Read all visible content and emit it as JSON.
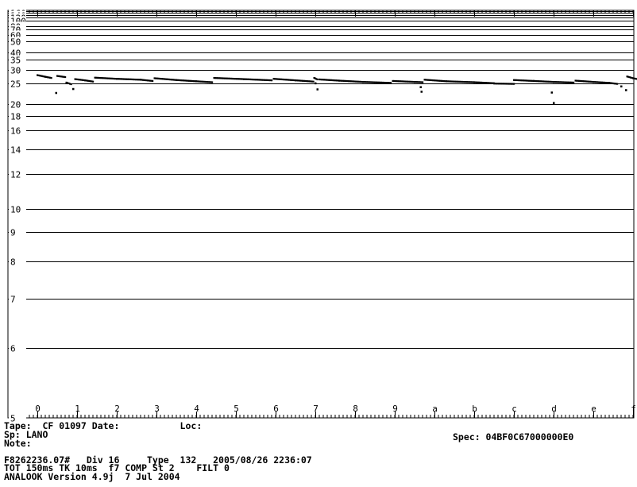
{
  "chart_data": {
    "type": "scatter",
    "y_scale": "reciprocal",
    "ylim": [
      5,
      200
    ],
    "xlim": [
      0,
      15
    ],
    "grid": true,
    "y_ticks": [
      {
        "value": 200,
        "label": "200"
      },
      {
        "value": 180,
        "label": "180"
      },
      {
        "value": 160,
        "label": "160"
      },
      {
        "value": 140,
        "label": "140"
      },
      {
        "value": 120,
        "label": "120"
      },
      {
        "value": 100,
        "label": "100"
      },
      {
        "value": 80,
        "label": "80"
      },
      {
        "value": 70,
        "label": "70"
      },
      {
        "value": 60,
        "label": "60"
      },
      {
        "value": 50,
        "label": "50"
      },
      {
        "value": 40,
        "label": "40"
      },
      {
        "value": 35,
        "label": "35"
      },
      {
        "value": 30,
        "label": "30"
      },
      {
        "value": 25,
        "label": "25"
      },
      {
        "value": 20,
        "label": "20"
      },
      {
        "value": 18,
        "label": "18"
      },
      {
        "value": 16,
        "label": "16"
      },
      {
        "value": 14,
        "label": "14"
      },
      {
        "value": 12,
        "label": "12"
      },
      {
        "value": 10,
        "label": "10"
      },
      {
        "value": 9,
        "label": "9"
      },
      {
        "value": 8,
        "label": "8"
      },
      {
        "value": 7,
        "label": "7"
      },
      {
        "value": 6,
        "label": "6"
      },
      {
        "value": 5,
        "label": "5"
      }
    ],
    "x_ticks": [
      {
        "value": 0,
        "label": "0"
      },
      {
        "value": 1,
        "label": "1"
      },
      {
        "value": 2,
        "label": "2"
      },
      {
        "value": 3,
        "label": "3"
      },
      {
        "value": 4,
        "label": "4"
      },
      {
        "value": 5,
        "label": "5"
      },
      {
        "value": 6,
        "label": "6"
      },
      {
        "value": 7,
        "label": "7"
      },
      {
        "value": 8,
        "label": "8"
      },
      {
        "value": 9,
        "label": "9"
      },
      {
        "value": 10,
        "label": "a"
      },
      {
        "value": 11,
        "label": "b"
      },
      {
        "value": 12,
        "label": "c"
      },
      {
        "value": 13,
        "label": "d"
      },
      {
        "value": 14,
        "label": "e"
      },
      {
        "value": 15,
        "label": "f"
      }
    ],
    "segments": [
      {
        "points": [
          [
            0.0,
            27.8
          ],
          [
            0.2,
            27.2
          ],
          [
            0.35,
            26.8
          ]
        ]
      },
      {
        "points": [
          [
            0.47,
            22.5
          ]
        ]
      },
      {
        "points": [
          [
            0.5,
            27.5
          ],
          [
            0.7,
            27.1
          ]
        ]
      },
      {
        "points": [
          [
            0.73,
            25.3
          ],
          [
            0.85,
            24.8
          ]
        ]
      },
      {
        "points": [
          [
            0.9,
            23.5
          ]
        ]
      },
      {
        "points": [
          [
            0.95,
            26.4
          ],
          [
            1.2,
            26.0
          ],
          [
            1.4,
            25.6
          ]
        ]
      },
      {
        "points": [
          [
            1.45,
            26.9
          ],
          [
            2.0,
            26.5
          ],
          [
            2.6,
            26.2
          ],
          [
            2.9,
            25.8
          ]
        ]
      },
      {
        "points": [
          [
            2.95,
            26.7
          ],
          [
            3.5,
            26.1
          ],
          [
            4.0,
            25.7
          ],
          [
            4.4,
            25.4
          ]
        ]
      },
      {
        "points": [
          [
            4.45,
            26.8
          ],
          [
            5.2,
            26.4
          ],
          [
            5.9,
            26.0
          ]
        ]
      },
      {
        "points": [
          [
            5.95,
            26.5
          ],
          [
            6.5,
            26.0
          ],
          [
            6.95,
            25.6
          ]
        ]
      },
      {
        "points": [
          [
            6.97,
            26.8
          ],
          [
            7.05,
            26.3
          ]
        ]
      },
      {
        "points": [
          [
            7.0,
            25.1
          ]
        ]
      },
      {
        "points": [
          [
            7.05,
            23.4
          ]
        ]
      },
      {
        "points": [
          [
            7.1,
            26.3
          ],
          [
            7.6,
            25.9
          ],
          [
            8.2,
            25.5
          ],
          [
            8.9,
            25.2
          ]
        ]
      },
      {
        "points": [
          [
            8.95,
            25.8
          ],
          [
            9.5,
            25.5
          ],
          [
            9.7,
            25.4
          ]
        ]
      },
      {
        "points": [
          [
            9.65,
            24.0
          ]
        ]
      },
      {
        "points": [
          [
            9.67,
            22.8
          ]
        ]
      },
      {
        "points": [
          [
            9.75,
            26.2
          ],
          [
            10.3,
            25.7
          ],
          [
            11.0,
            25.4
          ],
          [
            11.5,
            25.1
          ]
        ]
      },
      {
        "points": [
          [
            11.5,
            25.0
          ],
          [
            12.0,
            24.9
          ]
        ]
      },
      {
        "points": [
          [
            12.0,
            26.1
          ],
          [
            12.5,
            25.8
          ],
          [
            13.0,
            25.5
          ],
          [
            13.5,
            25.3
          ]
        ]
      },
      {
        "points": [
          [
            12.95,
            22.6
          ]
        ]
      },
      {
        "points": [
          [
            13.0,
            20.3
          ]
        ]
      },
      {
        "points": [
          [
            13.55,
            25.9
          ],
          [
            14.0,
            25.5
          ],
          [
            14.4,
            25.2
          ],
          [
            14.6,
            24.9
          ]
        ]
      },
      {
        "points": [
          [
            14.7,
            24.2
          ]
        ]
      },
      {
        "points": [
          [
            14.82,
            23.2
          ]
        ]
      },
      {
        "points": [
          [
            14.85,
            27.3
          ],
          [
            15.0,
            26.7
          ],
          [
            15.15,
            26.3
          ]
        ]
      }
    ]
  },
  "info": {
    "tape_line": "Tape:  CF 01097 Date:           Loc:",
    "sp_line": "Sp: LANO",
    "spec_line": "Spec: 04BF0C67000000E0",
    "note_line": "Note:",
    "file_line": "F8262236.07#   Div 16     Type  132   2005/08/26 2236:07",
    "tot_line": "TOT 150ms TK 10ms  f7 COMP St 2    FILT 0",
    "version_line": "ANALOOK Version 4.9j  7 Jul 2004"
  }
}
